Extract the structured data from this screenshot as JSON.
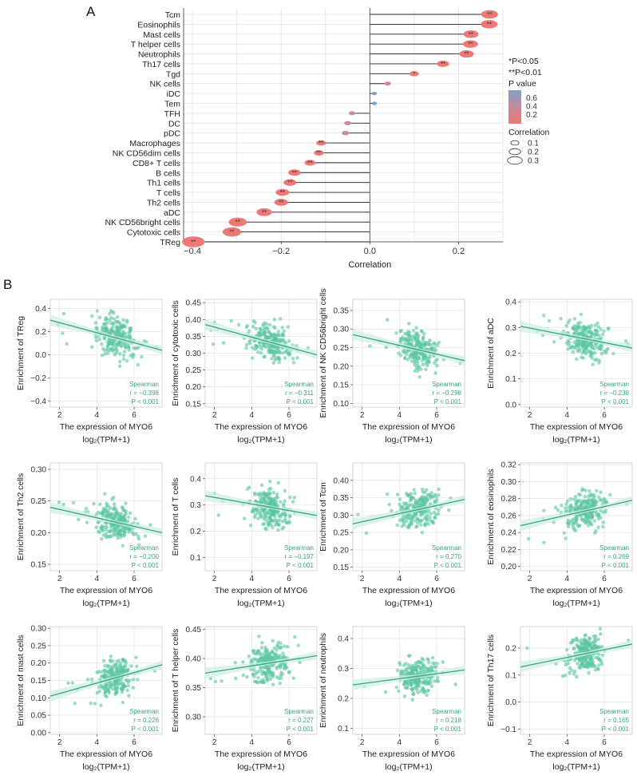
{
  "panel_labels": {
    "a": "A",
    "b": "B"
  },
  "colors": {
    "scatter": "#5bc6a4",
    "fit": "#3aa580",
    "ci": "#cdeee2",
    "sig_low_p": "#ee7876",
    "mid_p": "#c98a9c",
    "high_p": "#78a2cc",
    "grid": "#e4e4e4",
    "stars": "#333333"
  },
  "chart_data": [
    {
      "type": "lollipop",
      "id": "panelA",
      "xlabel": "Correlation",
      "xlim": [
        -0.42,
        0.3
      ],
      "xticks": [
        -0.4,
        -0.2,
        0.0,
        0.2
      ],
      "xtick_labels": [
        "−0.4",
        "−0.2",
        "0.0",
        "0.2"
      ],
      "cells": [
        "Tcm",
        "Eosinophils",
        "Mast cells",
        "T helper cells",
        "Neutrophils",
        "Th17 cells",
        "Tgd",
        "NK cells",
        "iDC",
        "Tem",
        "TFH",
        "DC",
        "pDC",
        "Macrophages",
        "NK CD56dim cells",
        "CD8+ T cells",
        "B cells",
        "Th1 cells",
        "T cells",
        "Th2 cells",
        "aDC",
        "NK CD56bright cells",
        "Cytotoxic cells",
        "TReg"
      ],
      "correlation": [
        0.27,
        0.269,
        0.228,
        0.227,
        0.218,
        0.165,
        0.1,
        0.04,
        0.01,
        0.01,
        -0.04,
        -0.05,
        -0.055,
        -0.11,
        -0.115,
        -0.135,
        -0.17,
        -0.18,
        -0.197,
        -0.2,
        -0.238,
        -0.298,
        -0.311,
        -0.398
      ],
      "p_value": [
        0.001,
        0.001,
        0.001,
        0.001,
        0.001,
        0.001,
        0.02,
        0.3,
        0.6,
        0.6,
        0.35,
        0.3,
        0.3,
        0.001,
        0.001,
        0.001,
        0.001,
        0.001,
        0.001,
        0.001,
        0.001,
        0.001,
        0.001,
        0.001
      ],
      "significance": [
        "**",
        "**",
        "**",
        "**",
        "**",
        "**",
        "*",
        "",
        "",
        "",
        "",
        "",
        "",
        "**",
        "**",
        "**",
        "**",
        "**",
        "**",
        "**",
        "**",
        "**",
        "**",
        "**"
      ],
      "legend": {
        "sig_note_1": "*P<0.05",
        "sig_note_2": "**P<0.01",
        "p_title": "P value",
        "p_ticks": [
          "0.6",
          "0.4",
          "0.2"
        ],
        "size_title": "Correlation",
        "size_labels": [
          "0.1",
          "0.2",
          "0.3"
        ]
      }
    },
    {
      "type": "scatter",
      "id": "TReg",
      "ylabel": "Enrichment of TReg",
      "xlabel": "The expression of MYO6",
      "xunit": "log₂(TPM+1)",
      "xlim": [
        1.5,
        7.5
      ],
      "xticks": [
        2,
        4,
        6
      ],
      "ylim": [
        -0.45,
        0.48
      ],
      "yticks": [
        -0.4,
        -0.2,
        0.0,
        0.2,
        0.4
      ],
      "ytick_labels": [
        "−0.4",
        "−0.2",
        "0.0",
        "0.2",
        "0.4"
      ],
      "fit": {
        "x": [
          1.5,
          7.5
        ],
        "y": [
          0.3,
          0.04
        ]
      },
      "stats": {
        "method": "Spearman",
        "r": "r = −0.398",
        "p": "P < 0.001"
      }
    },
    {
      "type": "scatter",
      "id": "Cytotoxic",
      "ylabel": "Enrichment of cytotoxic cells",
      "xlabel": "The expression of MYO6",
      "xunit": "log₂(TPM+1)",
      "xlim": [
        1.5,
        7.5
      ],
      "xticks": [
        2,
        4,
        6
      ],
      "ylim": [
        0.14,
        0.46
      ],
      "yticks": [
        0.15,
        0.2,
        0.25,
        0.3,
        0.35,
        0.4,
        0.45
      ],
      "ytick_labels": [
        "0.15",
        "0.20",
        "0.25",
        "0.30",
        "0.35",
        "0.40",
        "0.45"
      ],
      "fit": {
        "x": [
          1.5,
          7.5
        ],
        "y": [
          0.385,
          0.295
        ]
      },
      "stats": {
        "method": "Spearman",
        "r": "r = −0.311",
        "p": "P < 0.001"
      }
    },
    {
      "type": "scatter",
      "id": "NKbright",
      "ylabel": "Enrichment of NK CD56bright cells",
      "xlabel": "The expression of MYO6",
      "xunit": "log₂(TPM+1)",
      "xlim": [
        1.5,
        7.5
      ],
      "xticks": [
        2,
        4,
        6
      ],
      "ylim": [
        0.09,
        0.38
      ],
      "yticks": [
        0.1,
        0.15,
        0.2,
        0.25,
        0.3,
        0.35
      ],
      "ytick_labels": [
        "0.10",
        "0.15",
        "0.20",
        "0.25",
        "0.30",
        "0.35"
      ],
      "fit": {
        "x": [
          1.5,
          7.5
        ],
        "y": [
          0.285,
          0.215
        ]
      },
      "stats": {
        "method": "Spearman",
        "r": "r = −0.298",
        "p": "P < 0.001"
      }
    },
    {
      "type": "scatter",
      "id": "aDC",
      "ylabel": "Enrichment of aDC",
      "xlabel": "The expression of MYO6",
      "xunit": "log₂(TPM+1)",
      "xlim": [
        1.5,
        7.5
      ],
      "xticks": [
        2,
        4,
        6
      ],
      "ylim": [
        -0.01,
        0.41
      ],
      "yticks": [
        0.0,
        0.1,
        0.2,
        0.3,
        0.4
      ],
      "ytick_labels": [
        "0.0",
        "0.1",
        "0.2",
        "0.3",
        "0.4"
      ],
      "fit": {
        "x": [
          1.5,
          7.5
        ],
        "y": [
          0.305,
          0.22
        ]
      },
      "stats": {
        "method": "Spearman",
        "r": "r = −0.238",
        "p": "P < 0.001"
      }
    },
    {
      "type": "scatter",
      "id": "Th2",
      "ylabel": "Enrichment of Th2 cells",
      "xlabel": "The expression of MYO6",
      "xunit": "log₂(TPM+1)",
      "xlim": [
        1.5,
        7.5
      ],
      "xticks": [
        2,
        4,
        6
      ],
      "ylim": [
        0.14,
        0.31
      ],
      "yticks": [
        0.15,
        0.2,
        0.25,
        0.3
      ],
      "ytick_labels": [
        "0.15",
        "0.20",
        "0.25",
        "0.30"
      ],
      "fit": {
        "x": [
          1.5,
          7.5
        ],
        "y": [
          0.24,
          0.2
        ]
      },
      "stats": {
        "method": "Spearman",
        "r": "r = −0.200",
        "p": "P < 0.001"
      }
    },
    {
      "type": "scatter",
      "id": "Tcells",
      "ylabel": "Enrichment of T cells",
      "xlabel": "The expression of MYO6",
      "xunit": "log₂(TPM+1)",
      "xlim": [
        1.5,
        7.5
      ],
      "xticks": [
        2,
        4,
        6
      ],
      "ylim": [
        0.05,
        0.46
      ],
      "yticks": [
        0.1,
        0.2,
        0.3,
        0.4
      ],
      "ytick_labels": [
        "0.1",
        "0.2",
        "0.3",
        "0.4"
      ],
      "fit": {
        "x": [
          1.5,
          7.5
        ],
        "y": [
          0.335,
          0.26
        ]
      },
      "stats": {
        "method": "Spearman",
        "r": "r = −0.197",
        "p": "P < 0.001"
      }
    },
    {
      "type": "scatter",
      "id": "Tcm",
      "ylabel": "Enrichment of Tcm",
      "xlabel": "The expression of MYO6",
      "xunit": "log₂(TPM+1)",
      "xlim": [
        1.5,
        7.5
      ],
      "xticks": [
        2,
        4,
        6
      ],
      "ylim": [
        0.14,
        0.45
      ],
      "yticks": [
        0.15,
        0.2,
        0.25,
        0.3,
        0.35,
        0.4
      ],
      "ytick_labels": [
        "0.15",
        "0.20",
        "0.25",
        "0.30",
        "0.35",
        "0.40"
      ],
      "fit": {
        "x": [
          1.5,
          7.5
        ],
        "y": [
          0.275,
          0.345
        ]
      },
      "stats": {
        "method": "Spearman",
        "r": "r = 0.270",
        "p": "P < 0.001"
      }
    },
    {
      "type": "scatter",
      "id": "Eosinophils",
      "ylabel": "Enrichment of eosinophils",
      "xlabel": "The expression of MYO6",
      "xunit": "log₂(TPM+1)",
      "xlim": [
        1.5,
        7.5
      ],
      "xticks": [
        2,
        4,
        6
      ],
      "ylim": [
        0.195,
        0.322
      ],
      "yticks": [
        0.2,
        0.22,
        0.24,
        0.26,
        0.28,
        0.3,
        0.32
      ],
      "ytick_labels": [
        "0.20",
        "0.22",
        "0.24",
        "0.26",
        "0.28",
        "0.30",
        "0.32"
      ],
      "fit": {
        "x": [
          1.5,
          7.5
        ],
        "y": [
          0.248,
          0.278
        ]
      },
      "stats": {
        "method": "Spearman",
        "r": "r = 0.269",
        "p": "P < 0.001"
      }
    },
    {
      "type": "scatter",
      "id": "Mast",
      "ylabel": "Enrichment of mast cells",
      "xlabel": "The expression of MYO6",
      "xunit": "log₂(TPM+1)",
      "xlim": [
        1.5,
        7.5
      ],
      "xticks": [
        2,
        4,
        6
      ],
      "ylim": [
        -0.005,
        0.305
      ],
      "yticks": [
        0.0,
        0.05,
        0.1,
        0.15,
        0.2,
        0.25,
        0.3
      ],
      "ytick_labels": [
        "0.00",
        "0.05",
        "0.10",
        "0.15",
        "0.20",
        "0.25",
        "0.30"
      ],
      "fit": {
        "x": [
          1.5,
          7.5
        ],
        "y": [
          0.105,
          0.195
        ]
      },
      "stats": {
        "method": "Spearman",
        "r": "r = 0.228",
        "p": "P < 0.001"
      }
    },
    {
      "type": "scatter",
      "id": "Thelper",
      "ylabel": "Enrichment of T helper cells",
      "xlabel": "The expression of MYO6",
      "xunit": "log₂(TPM+1)",
      "xlim": [
        1.5,
        7.5
      ],
      "xticks": [
        2,
        4,
        6
      ],
      "ylim": [
        0.27,
        0.455
      ],
      "yticks": [
        0.3,
        0.35,
        0.4,
        0.45
      ],
      "ytick_labels": [
        "0.30",
        "0.35",
        "0.40",
        "0.45"
      ],
      "fit": {
        "x": [
          1.5,
          7.5
        ],
        "y": [
          0.375,
          0.405
        ]
      },
      "stats": {
        "method": "Spearman",
        "r": "r = 0.227",
        "p": "P < 0.001"
      }
    },
    {
      "type": "scatter",
      "id": "Neutrophils",
      "ylabel": "Enrichment of neutrophils",
      "xlabel": "The expression of MYO6",
      "xunit": "log₂(TPM+1)",
      "xlim": [
        1.5,
        7.5
      ],
      "xticks": [
        2,
        4,
        6
      ],
      "ylim": [
        0.08,
        0.44
      ],
      "yticks": [
        0.1,
        0.2,
        0.3,
        0.4
      ],
      "ytick_labels": [
        "0.1",
        "0.2",
        "0.3",
        "0.4"
      ],
      "fit": {
        "x": [
          1.5,
          7.5
        ],
        "y": [
          0.245,
          0.295
        ]
      },
      "stats": {
        "method": "Spearman",
        "r": "r = 0.218",
        "p": "P < 0.001"
      }
    },
    {
      "type": "scatter",
      "id": "Th17",
      "ylabel": "Enrichment of Th17 cells",
      "xlabel": "The expression of MYO6",
      "xunit": "log₂(TPM+1)",
      "xlim": [
        1.5,
        7.5
      ],
      "xticks": [
        2,
        4,
        6
      ],
      "ylim": [
        -0.12,
        0.28
      ],
      "yticks": [
        -0.1,
        0.0,
        0.1,
        0.2
      ],
      "ytick_labels": [
        "−0.1",
        "0.0",
        "0.1",
        "0.2"
      ],
      "fit": {
        "x": [
          1.5,
          7.5
        ],
        "y": [
          0.13,
          0.215
        ]
      },
      "stats": {
        "method": "Spearman",
        "r": "r = 0.165",
        "p": "P < 0.001"
      }
    }
  ]
}
